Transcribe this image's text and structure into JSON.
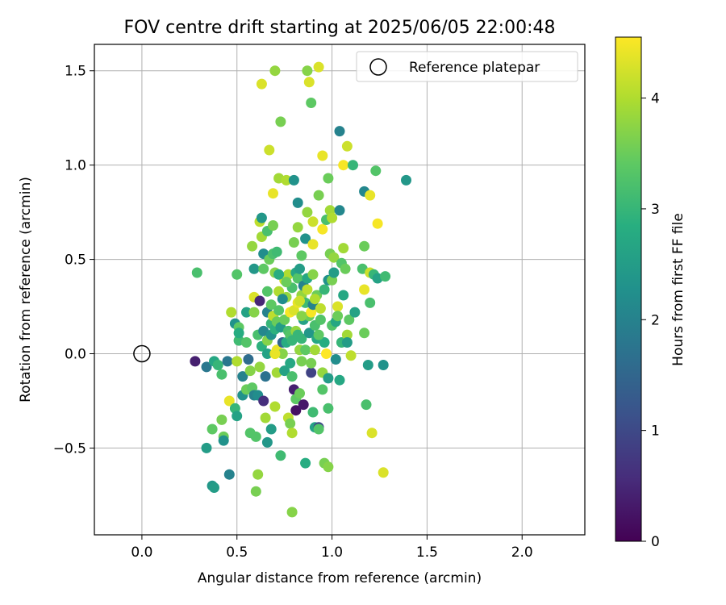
{
  "chart_data": {
    "type": "scatter",
    "title": "FOV centre drift starting at 2025/06/05 22:00:48",
    "xlabel": "Angular distance from reference (arcmin)",
    "ylabel": "Rotation from reference (arcmin)",
    "xlim": [
      -0.25,
      2.33
    ],
    "ylim": [
      -0.96,
      1.64
    ],
    "xticks": [
      0.0,
      0.5,
      1.0,
      1.5,
      2.0
    ],
    "xtick_labels": [
      "0.0",
      "0.5",
      "1.0",
      "1.5",
      "2.0"
    ],
    "yticks": [
      -0.5,
      0.0,
      0.5,
      1.0,
      1.5
    ],
    "ytick_labels": [
      "−0.5",
      "0.0",
      "0.5",
      "1.0",
      "1.5"
    ],
    "grid": true,
    "legend": {
      "placement": "top-right",
      "entries": [
        "Reference platepar"
      ]
    },
    "reference_point": {
      "x": 0.0,
      "y": 0.0
    },
    "colorbar": {
      "label": "Hours from first FF file",
      "colormap": "viridis",
      "range": [
        0,
        4.55
      ],
      "ticks": [
        0,
        1,
        2,
        3,
        4
      ],
      "tick_labels": [
        "0",
        "1",
        "2",
        "3",
        "4"
      ]
    },
    "points": [
      [
        0.28,
        -0.04,
        0.4
      ],
      [
        0.34,
        -0.07,
        1.8
      ],
      [
        0.29,
        0.43,
        3.2
      ],
      [
        0.34,
        -0.5,
        2.5
      ],
      [
        0.37,
        -0.4,
        3.4
      ],
      [
        0.37,
        -0.7,
        2.4
      ],
      [
        0.38,
        -0.71,
        2.5
      ],
      [
        0.38,
        -0.04,
        2.7
      ],
      [
        0.4,
        -0.06,
        3.0
      ],
      [
        0.42,
        -0.11,
        3.2
      ],
      [
        0.42,
        -0.35,
        3.6
      ],
      [
        0.43,
        -0.44,
        3.5
      ],
      [
        0.43,
        -0.46,
        2.3
      ],
      [
        0.45,
        -0.04,
        1.8
      ],
      [
        0.46,
        -0.25,
        4.4
      ],
      [
        0.46,
        -0.64,
        2.0
      ],
      [
        0.47,
        0.22,
        4.0
      ],
      [
        0.49,
        0.16,
        2.3
      ],
      [
        0.49,
        -0.29,
        3.0
      ],
      [
        0.5,
        -0.04,
        4.0
      ],
      [
        0.5,
        0.42,
        3.3
      ],
      [
        0.5,
        -0.33,
        2.6
      ],
      [
        0.51,
        0.07,
        3.1
      ],
      [
        0.51,
        0.14,
        3.4
      ],
      [
        0.51,
        0.11,
        2.8
      ],
      [
        0.53,
        -0.22,
        2.3
      ],
      [
        0.53,
        -0.12,
        2.0
      ],
      [
        0.55,
        0.22,
        2.6
      ],
      [
        0.55,
        -0.19,
        3.5
      ],
      [
        0.56,
        -0.03,
        1.6
      ],
      [
        0.57,
        -0.09,
        3.7
      ],
      [
        0.57,
        -0.42,
        3.3
      ],
      [
        0.58,
        0.57,
        3.8
      ],
      [
        0.58,
        -0.18,
        3.4
      ],
      [
        0.59,
        0.3,
        4.3
      ],
      [
        0.59,
        0.22,
        3.7
      ],
      [
        0.59,
        0.45,
        2.4
      ],
      [
        0.59,
        -0.22,
        2.0
      ],
      [
        0.6,
        -0.73,
        3.6
      ],
      [
        0.6,
        -0.44,
        3.3
      ],
      [
        0.61,
        -0.64,
        3.8
      ],
      [
        0.61,
        0.1,
        3.2
      ],
      [
        0.61,
        -0.22,
        2.2
      ],
      [
        0.62,
        0.28,
        0.5
      ],
      [
        0.62,
        0.7,
        4.1
      ],
      [
        0.63,
        1.43,
        4.3
      ],
      [
        0.63,
        0.62,
        3.9
      ],
      [
        0.63,
        0.04,
        2.9
      ],
      [
        0.63,
        0.72,
        2.4
      ],
      [
        0.64,
        -0.25,
        0.6
      ],
      [
        0.64,
        0.45,
        3.4
      ],
      [
        0.64,
        0.53,
        2.2
      ],
      [
        0.64,
        0.12,
        2.1
      ],
      [
        0.65,
        -0.12,
        1.7
      ],
      [
        0.65,
        -0.34,
        3.9
      ],
      [
        0.66,
        0.65,
        3.2
      ],
      [
        0.66,
        0.07,
        3.7
      ],
      [
        0.66,
        0.0,
        2.6
      ],
      [
        0.66,
        0.22,
        2.0
      ],
      [
        0.66,
        -0.47,
        2.4
      ],
      [
        0.67,
        1.08,
        4.2
      ],
      [
        0.67,
        0.5,
        3.5
      ],
      [
        0.68,
        -0.4,
        2.5
      ],
      [
        0.68,
        0.26,
        3.4
      ],
      [
        0.68,
        0.16,
        3.0
      ],
      [
        0.68,
        0.1,
        2.3
      ],
      [
        0.69,
        0.85,
        4.4
      ],
      [
        0.69,
        0.68,
        3.6
      ],
      [
        0.69,
        0.53,
        3.2
      ],
      [
        0.69,
        0.2,
        4.1
      ],
      [
        0.7,
        1.5,
        3.8
      ],
      [
        0.7,
        0.43,
        3.7
      ],
      [
        0.7,
        -0.28,
        4.0
      ],
      [
        0.7,
        0.0,
        4.5
      ],
      [
        0.7,
        0.13,
        2.9
      ],
      [
        0.71,
        0.54,
        3.1
      ],
      [
        0.71,
        0.02,
        4.4
      ],
      [
        0.71,
        -0.1,
        3.9
      ],
      [
        0.71,
        0.17,
        3.5
      ],
      [
        0.72,
        0.33,
        4.0
      ],
      [
        0.72,
        0.93,
        3.9
      ],
      [
        0.72,
        0.23,
        3.3
      ],
      [
        0.73,
        1.23,
        3.6
      ],
      [
        0.73,
        0.14,
        2.5
      ],
      [
        0.73,
        -0.54,
        3.1
      ],
      [
        0.74,
        0.06,
        1.5
      ],
      [
        0.74,
        0.0,
        3.7
      ],
      [
        0.75,
        -0.09,
        2.6
      ],
      [
        0.75,
        0.18,
        3.5
      ],
      [
        0.75,
        0.39,
        4.2
      ],
      [
        0.76,
        0.3,
        3.8
      ],
      [
        0.76,
        0.06,
        2.8
      ],
      [
        0.76,
        0.92,
        4.0
      ],
      [
        0.77,
        0.12,
        3.2
      ],
      [
        0.77,
        -0.34,
        4.1
      ],
      [
        0.77,
        0.42,
        4.0
      ],
      [
        0.78,
        -0.37,
        3.6
      ],
      [
        0.78,
        0.1,
        3.3
      ],
      [
        0.78,
        -0.05,
        2.7
      ],
      [
        0.78,
        0.22,
        4.5
      ],
      [
        0.79,
        -0.84,
        3.7
      ],
      [
        0.79,
        0.35,
        3.2
      ],
      [
        0.79,
        0.07,
        3.0
      ],
      [
        0.79,
        -0.42,
        4.0
      ],
      [
        0.8,
        0.59,
        3.6
      ],
      [
        0.8,
        0.92,
        2.3
      ],
      [
        0.8,
        -0.19,
        0.4
      ],
      [
        0.8,
        0.23,
        4.3
      ],
      [
        0.81,
        0.12,
        3.8
      ],
      [
        0.81,
        -0.24,
        3.4
      ],
      [
        0.81,
        0.43,
        2.7
      ],
      [
        0.81,
        -0.3,
        0.2
      ],
      [
        0.82,
        0.8,
        2.2
      ],
      [
        0.82,
        0.67,
        3.8
      ],
      [
        0.82,
        0.4,
        3.3
      ],
      [
        0.82,
        0.27,
        4.4
      ],
      [
        0.82,
        0.1,
        3.0
      ],
      [
        0.83,
        -0.21,
        3.5
      ],
      [
        0.83,
        0.45,
        2.5
      ],
      [
        0.83,
        0.02,
        3.8
      ],
      [
        0.84,
        0.52,
        3.4
      ],
      [
        0.84,
        0.08,
        3.0
      ],
      [
        0.84,
        -0.04,
        3.6
      ],
      [
        0.84,
        0.31,
        3.8
      ],
      [
        0.85,
        0.36,
        2.0
      ],
      [
        0.85,
        -0.27,
        0.3
      ],
      [
        0.85,
        0.18,
        2.6
      ],
      [
        0.86,
        0.61,
        2.3
      ],
      [
        0.86,
        -0.58,
        2.8
      ],
      [
        0.86,
        0.02,
        3.4
      ],
      [
        0.86,
        0.27,
        3.1
      ],
      [
        0.87,
        1.5,
        3.7
      ],
      [
        0.87,
        0.75,
        3.8
      ],
      [
        0.87,
        0.4,
        2.7
      ],
      [
        0.88,
        1.44,
        4.3
      ],
      [
        0.88,
        0.2,
        3.5
      ],
      [
        0.88,
        0.11,
        2.4
      ],
      [
        0.89,
        1.33,
        3.4
      ],
      [
        0.89,
        -0.1,
        0.9
      ],
      [
        0.89,
        0.22,
        4.5
      ],
      [
        0.89,
        -0.05,
        3.6
      ],
      [
        0.9,
        0.7,
        4.2
      ],
      [
        0.9,
        0.58,
        4.4
      ],
      [
        0.9,
        0.42,
        3.7
      ],
      [
        0.9,
        -0.31,
        3.1
      ],
      [
        0.9,
        0.26,
        2.0
      ],
      [
        0.91,
        0.02,
        3.9
      ],
      [
        0.91,
        -0.39,
        2.6
      ],
      [
        0.91,
        0.15,
        3.2
      ],
      [
        0.92,
        0.08,
        2.7
      ],
      [
        0.92,
        0.31,
        3.5
      ],
      [
        0.93,
        0.84,
        3.6
      ],
      [
        0.93,
        1.52,
        4.3
      ],
      [
        0.93,
        -0.39,
        1.0
      ],
      [
        0.93,
        -0.4,
        3.3
      ],
      [
        0.94,
        0.24,
        4.1
      ],
      [
        0.94,
        0.18,
        3.3
      ],
      [
        0.95,
        1.05,
        4.4
      ],
      [
        0.95,
        0.66,
        4.5
      ],
      [
        0.95,
        -0.1,
        3.8
      ],
      [
        0.96,
        0.06,
        2.8
      ],
      [
        0.96,
        0.34,
        3.0
      ],
      [
        0.96,
        -0.58,
        3.6
      ],
      [
        0.97,
        0.0,
        4.6
      ],
      [
        0.97,
        0.71,
        3.2
      ],
      [
        0.98,
        0.93,
        3.5
      ],
      [
        0.98,
        -0.13,
        2.5
      ],
      [
        0.98,
        0.39,
        2.3
      ],
      [
        0.98,
        -0.29,
        3.2
      ],
      [
        0.98,
        -0.6,
        3.7
      ],
      [
        0.99,
        0.53,
        3.6
      ],
      [
        0.99,
        0.76,
        3.9
      ],
      [
        1.0,
        0.72,
        4.0
      ],
      [
        1.0,
        0.15,
        3.3
      ],
      [
        1.0,
        0.39,
        3.6
      ],
      [
        1.01,
        0.43,
        2.5
      ],
      [
        1.01,
        0.51,
        3.8
      ],
      [
        1.02,
        -0.03,
        2.2
      ],
      [
        1.02,
        0.17,
        2.7
      ],
      [
        1.03,
        0.25,
        4.3
      ],
      [
        1.03,
        0.2,
        3.5
      ],
      [
        1.04,
        0.76,
        2.1
      ],
      [
        1.04,
        1.18,
        2.0
      ],
      [
        1.04,
        -0.14,
        2.7
      ],
      [
        1.05,
        0.48,
        3.3
      ],
      [
        1.05,
        0.06,
        3.0
      ],
      [
        1.06,
        0.31,
        2.7
      ],
      [
        1.06,
        1.0,
        4.5
      ],
      [
        1.06,
        0.56,
        3.9
      ],
      [
        1.07,
        0.45,
        3.5
      ],
      [
        1.08,
        1.1,
        4.2
      ],
      [
        1.08,
        0.1,
        3.9
      ],
      [
        1.08,
        0.06,
        2.5
      ],
      [
        1.09,
        0.18,
        3.4
      ],
      [
        1.1,
        -0.01,
        4.1
      ],
      [
        1.11,
        1.0,
        3.0
      ],
      [
        1.16,
        0.45,
        3.2
      ],
      [
        1.17,
        0.34,
        4.4
      ],
      [
        1.17,
        0.11,
        3.5
      ],
      [
        1.17,
        0.86,
        2.1
      ],
      [
        1.17,
        0.57,
        3.5
      ],
      [
        1.18,
        -0.27,
        3.2
      ],
      [
        1.19,
        -0.06,
        2.5
      ],
      [
        1.2,
        0.43,
        4.2
      ],
      [
        1.2,
        0.84,
        4.4
      ],
      [
        1.2,
        0.27,
        3.2
      ],
      [
        1.21,
        -0.42,
        4.3
      ],
      [
        1.22,
        0.42,
        3.0
      ],
      [
        1.23,
        0.97,
        3.3
      ],
      [
        1.24,
        0.69,
        4.5
      ],
      [
        1.24,
        0.4,
        2.6
      ],
      [
        1.27,
        -0.06,
        2.3
      ],
      [
        1.27,
        -0.63,
        4.3
      ],
      [
        1.28,
        0.41,
        3.1
      ],
      [
        1.39,
        0.92,
        2.4
      ],
      [
        0.55,
        0.06,
        3.3
      ],
      [
        0.74,
        0.29,
        2.2
      ],
      [
        0.84,
        0.2,
        3.7
      ],
      [
        0.93,
        0.1,
        3.4
      ],
      [
        0.76,
        0.38,
        3.5
      ],
      [
        0.87,
        0.34,
        4.1
      ],
      [
        0.79,
        -0.12,
        3.2
      ],
      [
        0.72,
        0.42,
        2.8
      ],
      [
        0.95,
        -0.19,
        3.3
      ],
      [
        1.12,
        0.22,
        2.6
      ],
      [
        0.62,
        -0.07,
        3.8
      ],
      [
        0.83,
        0.28,
        4.2
      ],
      [
        0.7,
        0.0,
        4.4
      ],
      [
        0.91,
        0.29,
        4.0
      ],
      [
        0.66,
        0.33,
        3.3
      ]
    ]
  }
}
